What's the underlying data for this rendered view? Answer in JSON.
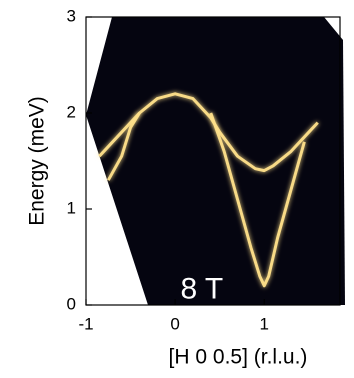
{
  "chart_data": {
    "type": "line",
    "ylabel": "Energy (meV)",
    "xlabel": "[H 0 0.5] (r.l.u.)",
    "annotation": "8 T",
    "annotation_x": 0.3,
    "annotation_y": 0.15,
    "xlim": [
      -1,
      1.85
    ],
    "xticks": [
      -1,
      0,
      1
    ],
    "ylim": [
      0,
      3
    ],
    "yticks": [
      0,
      1,
      2,
      3
    ],
    "series": [
      {
        "color": "#ffe08a",
        "x": [
          -0.85,
          -0.6,
          -0.4,
          -0.2,
          0,
          0.2,
          0.4,
          0.5,
          0.7,
          0.9,
          1,
          1.1,
          1.3,
          1.5,
          1.6
        ],
        "values": [
          1.55,
          1.8,
          2.0,
          2.15,
          2.2,
          2.15,
          1.95,
          1.8,
          1.55,
          1.42,
          1.4,
          1.45,
          1.6,
          1.8,
          1.9
        ]
      },
      {
        "color": "#ffe08a",
        "x": [
          -0.75,
          -0.6,
          -0.5,
          -0.4
        ],
        "values": [
          1.3,
          1.55,
          1.85,
          2.0
        ]
      },
      {
        "color": "#ffe08a",
        "x": [
          0.4,
          0.55,
          0.7,
          0.85,
          0.95,
          1,
          1.05,
          1.15,
          1.3,
          1.45
        ],
        "values": [
          2.0,
          1.6,
          1.1,
          0.6,
          0.3,
          0.2,
          0.3,
          0.7,
          1.2,
          1.7
        ]
      },
      {
        "color": "#ffb060",
        "x": [
          -0.3,
          1.8
        ],
        "values": [
          0.03,
          0.03
        ]
      }
    ]
  }
}
